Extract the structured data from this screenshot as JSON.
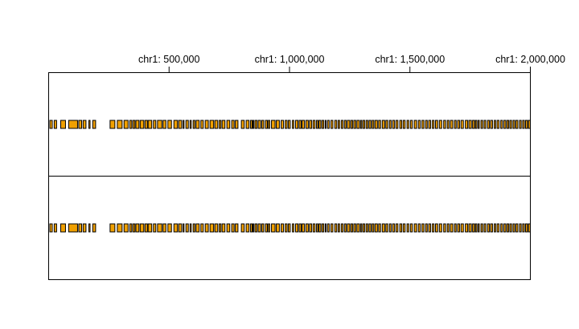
{
  "chart_data": {
    "type": "genome-track",
    "chromosome": "chr1",
    "x_range_bp": [
      0,
      2000000
    ],
    "axis_ticks": [
      {
        "position": 500000,
        "label": "chr1: 500,000"
      },
      {
        "position": 1000000,
        "label": "chr1: 1,000,000"
      },
      {
        "position": 1500000,
        "label": "chr1: 1,500,000"
      },
      {
        "position": 2000000,
        "label": "chr1: 2,000,000"
      }
    ],
    "panels": [
      {
        "regions": [
          [
            5000,
            15000
          ],
          [
            23000,
            33000
          ],
          [
            50000,
            70000
          ],
          [
            83000,
            120000
          ],
          [
            125000,
            137000
          ],
          [
            143000,
            155000
          ],
          [
            167000,
            172000
          ],
          [
            183000,
            195000
          ],
          [
            255000,
            275000
          ],
          [
            285000,
            305000
          ],
          [
            313000,
            330000
          ],
          [
            337000,
            345000
          ],
          [
            350000,
            358000
          ],
          [
            362000,
            375000
          ],
          [
            380000,
            395000
          ],
          [
            400000,
            410000
          ],
          [
            413000,
            428000
          ],
          [
            435000,
            445000
          ],
          [
            452000,
            470000
          ],
          [
            475000,
            487000
          ],
          [
            495000,
            510000
          ],
          [
            520000,
            535000
          ],
          [
            540000,
            552000
          ],
          [
            558000,
            562000
          ],
          [
            570000,
            580000
          ],
          [
            587000,
            592000
          ],
          [
            600000,
            607000
          ],
          [
            612000,
            625000
          ],
          [
            632000,
            642000
          ],
          [
            650000,
            663000
          ],
          [
            670000,
            685000
          ],
          [
            690000,
            702000
          ],
          [
            708000,
            715000
          ],
          [
            720000,
            732000
          ],
          [
            740000,
            752000
          ],
          [
            760000,
            770000
          ],
          [
            775000,
            786000
          ],
          [
            800000,
            812000
          ],
          [
            820000,
            832000
          ],
          [
            838000,
            845000
          ],
          [
            848000,
            852000
          ],
          [
            857000,
            865000
          ],
          [
            870000,
            880000
          ],
          [
            885000,
            893000
          ],
          [
            900000,
            908000
          ],
          [
            912000,
            918000
          ],
          [
            925000,
            940000
          ],
          [
            945000,
            958000
          ],
          [
            965000,
            975000
          ],
          [
            982000,
            990000
          ],
          [
            995000,
            1003000
          ],
          [
            1012000,
            1018000
          ],
          [
            1025000,
            1035000
          ],
          [
            1040000,
            1048000
          ],
          [
            1052000,
            1062000
          ],
          [
            1068000,
            1078000
          ],
          [
            1083000,
            1092000
          ],
          [
            1098000,
            1106000
          ],
          [
            1112000,
            1118000
          ],
          [
            1122000,
            1130000
          ],
          [
            1135000,
            1142000
          ],
          [
            1148000,
            1152000
          ],
          [
            1158000,
            1165000
          ],
          [
            1172000,
            1180000
          ],
          [
            1188000,
            1196000
          ],
          [
            1202000,
            1208000
          ],
          [
            1215000,
            1222000
          ],
          [
            1228000,
            1235000
          ],
          [
            1240000,
            1250000
          ],
          [
            1255000,
            1262000
          ],
          [
            1267000,
            1275000
          ],
          [
            1280000,
            1290000
          ],
          [
            1295000,
            1300000
          ],
          [
            1305000,
            1312000
          ],
          [
            1318000,
            1325000
          ],
          [
            1330000,
            1338000
          ],
          [
            1343000,
            1350000
          ],
          [
            1355000,
            1365000
          ],
          [
            1370000,
            1378000
          ],
          [
            1385000,
            1395000
          ],
          [
            1400000,
            1408000
          ],
          [
            1415000,
            1422000
          ],
          [
            1428000,
            1436000
          ],
          [
            1442000,
            1450000
          ],
          [
            1458000,
            1466000
          ],
          [
            1472000,
            1480000
          ],
          [
            1488000,
            1495000
          ],
          [
            1502000,
            1510000
          ],
          [
            1518000,
            1528000
          ],
          [
            1535000,
            1543000
          ],
          [
            1550000,
            1558000
          ],
          [
            1565000,
            1572000
          ],
          [
            1578000,
            1586000
          ],
          [
            1593000,
            1600000
          ],
          [
            1606000,
            1615000
          ],
          [
            1622000,
            1632000
          ],
          [
            1640000,
            1648000
          ],
          [
            1655000,
            1662000
          ],
          [
            1668000,
            1678000
          ],
          [
            1685000,
            1692000
          ],
          [
            1698000,
            1706000
          ],
          [
            1712000,
            1722000
          ],
          [
            1730000,
            1740000
          ],
          [
            1745000,
            1755000
          ],
          [
            1760000,
            1768000
          ],
          [
            1772000,
            1778000
          ],
          [
            1783000,
            1788000
          ],
          [
            1795000,
            1802000
          ],
          [
            1808000,
            1815000
          ],
          [
            1822000,
            1830000
          ],
          [
            1835000,
            1843000
          ],
          [
            1850000,
            1856000
          ],
          [
            1862000,
            1870000
          ],
          [
            1877000,
            1884000
          ],
          [
            1890000,
            1898000
          ],
          [
            1903000,
            1910000
          ],
          [
            1915000,
            1922000
          ],
          [
            1928000,
            1935000
          ],
          [
            1940000,
            1948000
          ],
          [
            1955000,
            1962000
          ],
          [
            1968000,
            1975000
          ],
          [
            1980000,
            1988000
          ],
          [
            1992000,
            2000000
          ]
        ]
      },
      {
        "regions": [
          [
            5000,
            15000
          ],
          [
            23000,
            33000
          ],
          [
            50000,
            70000
          ],
          [
            83000,
            120000
          ],
          [
            125000,
            137000
          ],
          [
            143000,
            155000
          ],
          [
            167000,
            172000
          ],
          [
            183000,
            195000
          ],
          [
            255000,
            275000
          ],
          [
            285000,
            305000
          ],
          [
            313000,
            330000
          ],
          [
            337000,
            345000
          ],
          [
            350000,
            358000
          ],
          [
            362000,
            375000
          ],
          [
            380000,
            395000
          ],
          [
            400000,
            410000
          ],
          [
            413000,
            428000
          ],
          [
            435000,
            445000
          ],
          [
            452000,
            470000
          ],
          [
            475000,
            487000
          ],
          [
            495000,
            510000
          ],
          [
            520000,
            535000
          ],
          [
            540000,
            552000
          ],
          [
            558000,
            562000
          ],
          [
            570000,
            580000
          ],
          [
            587000,
            592000
          ],
          [
            600000,
            607000
          ],
          [
            612000,
            625000
          ],
          [
            632000,
            642000
          ],
          [
            650000,
            663000
          ],
          [
            670000,
            685000
          ],
          [
            690000,
            702000
          ],
          [
            708000,
            715000
          ],
          [
            720000,
            732000
          ],
          [
            740000,
            752000
          ],
          [
            760000,
            770000
          ],
          [
            775000,
            786000
          ],
          [
            800000,
            812000
          ],
          [
            820000,
            832000
          ],
          [
            838000,
            845000
          ],
          [
            848000,
            852000
          ],
          [
            857000,
            865000
          ],
          [
            870000,
            880000
          ],
          [
            885000,
            893000
          ],
          [
            900000,
            908000
          ],
          [
            912000,
            918000
          ],
          [
            925000,
            940000
          ],
          [
            945000,
            958000
          ],
          [
            965000,
            975000
          ],
          [
            982000,
            990000
          ],
          [
            995000,
            1003000
          ],
          [
            1012000,
            1018000
          ],
          [
            1025000,
            1035000
          ],
          [
            1040000,
            1048000
          ],
          [
            1052000,
            1062000
          ],
          [
            1068000,
            1078000
          ],
          [
            1083000,
            1092000
          ],
          [
            1098000,
            1106000
          ],
          [
            1112000,
            1118000
          ],
          [
            1122000,
            1130000
          ],
          [
            1135000,
            1142000
          ],
          [
            1148000,
            1152000
          ],
          [
            1158000,
            1165000
          ],
          [
            1172000,
            1180000
          ],
          [
            1188000,
            1196000
          ],
          [
            1202000,
            1208000
          ],
          [
            1215000,
            1222000
          ],
          [
            1228000,
            1235000
          ],
          [
            1240000,
            1250000
          ],
          [
            1255000,
            1262000
          ],
          [
            1267000,
            1275000
          ],
          [
            1280000,
            1290000
          ],
          [
            1295000,
            1300000
          ],
          [
            1305000,
            1312000
          ],
          [
            1318000,
            1325000
          ],
          [
            1330000,
            1338000
          ],
          [
            1343000,
            1350000
          ],
          [
            1355000,
            1365000
          ],
          [
            1370000,
            1378000
          ],
          [
            1385000,
            1395000
          ],
          [
            1400000,
            1408000
          ],
          [
            1415000,
            1422000
          ],
          [
            1428000,
            1436000
          ],
          [
            1442000,
            1450000
          ],
          [
            1458000,
            1466000
          ],
          [
            1472000,
            1480000
          ],
          [
            1488000,
            1495000
          ],
          [
            1502000,
            1510000
          ],
          [
            1518000,
            1528000
          ],
          [
            1535000,
            1543000
          ],
          [
            1550000,
            1558000
          ],
          [
            1565000,
            1572000
          ],
          [
            1578000,
            1586000
          ],
          [
            1593000,
            1600000
          ],
          [
            1606000,
            1615000
          ],
          [
            1622000,
            1632000
          ],
          [
            1640000,
            1648000
          ],
          [
            1655000,
            1662000
          ],
          [
            1668000,
            1678000
          ],
          [
            1685000,
            1692000
          ],
          [
            1698000,
            1706000
          ],
          [
            1712000,
            1722000
          ],
          [
            1730000,
            1740000
          ],
          [
            1745000,
            1755000
          ],
          [
            1760000,
            1768000
          ],
          [
            1772000,
            1778000
          ],
          [
            1783000,
            1788000
          ],
          [
            1795000,
            1802000
          ],
          [
            1808000,
            1815000
          ],
          [
            1822000,
            1830000
          ],
          [
            1835000,
            1843000
          ],
          [
            1850000,
            1856000
          ],
          [
            1862000,
            1870000
          ],
          [
            1877000,
            1884000
          ],
          [
            1890000,
            1898000
          ],
          [
            1903000,
            1910000
          ],
          [
            1915000,
            1922000
          ],
          [
            1928000,
            1935000
          ],
          [
            1940000,
            1948000
          ],
          [
            1955000,
            1962000
          ],
          [
            1968000,
            1975000
          ],
          [
            1980000,
            1988000
          ],
          [
            1992000,
            2000000
          ]
        ]
      }
    ],
    "region_fill_color": "#F0A000",
    "region_stroke_color": "#000000",
    "grid": false,
    "legend": "none"
  }
}
